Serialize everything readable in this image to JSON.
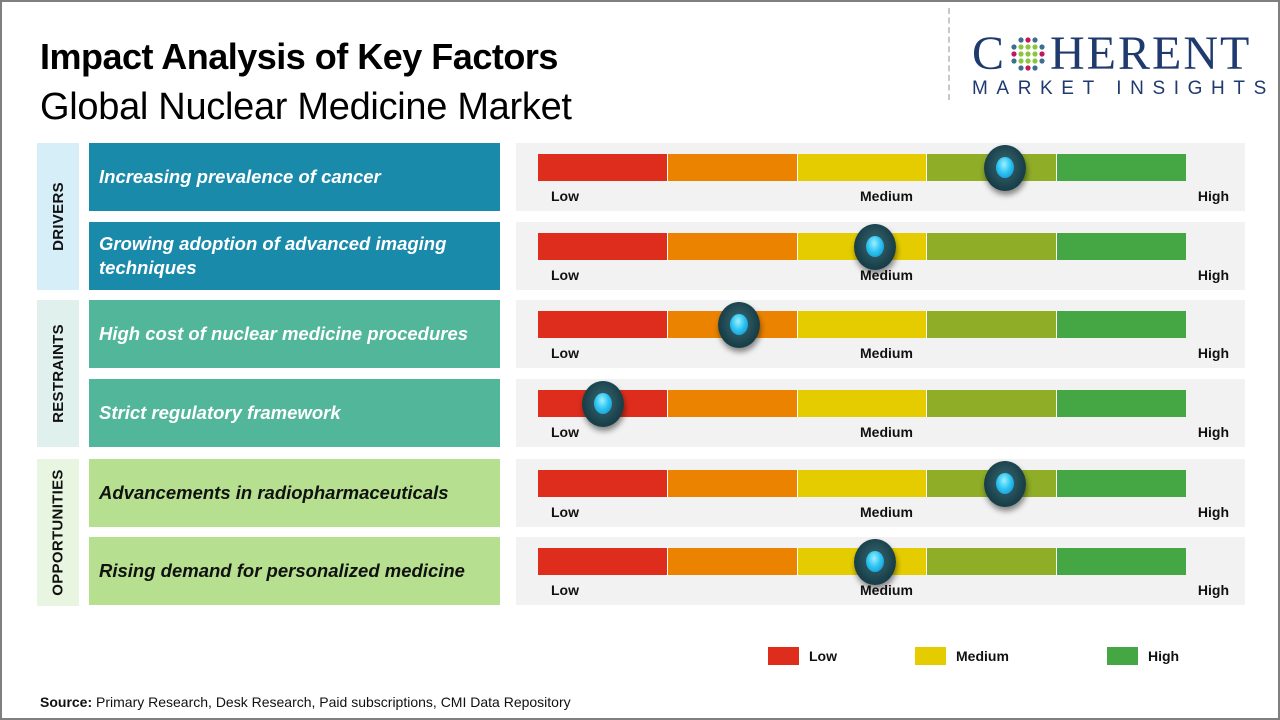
{
  "header": {
    "title": "Impact Analysis of Key Factors",
    "subtitle": "Global Nuclear Medicine Market"
  },
  "logo": {
    "name_part1": "C",
    "name_part2": "HERENT",
    "tagline": "MARKET INSIGHTS",
    "colors": {
      "text": "#1f3a6e",
      "dots_outer": "#3b6e8f",
      "dots_inner": "#8cc63f",
      "dots_accent": "#c2185b"
    }
  },
  "scale": {
    "low_label": "Low",
    "medium_label": "Medium",
    "high_label": "High",
    "segment_colors": [
      "#de2d1c",
      "#ec8300",
      "#e5cc00",
      "#8fad27",
      "#45a744"
    ]
  },
  "categories": [
    {
      "name": "DRIVERS",
      "label_bg": "#d6eef8",
      "factor_bg": "#1a8aab",
      "factor_text_color": "#ffffff"
    },
    {
      "name": "RESTRAINTS",
      "label_bg": "#e0f0ec",
      "factor_bg": "#52b69a",
      "factor_text_color": "#ffffff"
    },
    {
      "name": "OPPORTUNITIES",
      "label_bg": "#e8f5e0",
      "factor_bg": "#b6e090",
      "factor_text_color": "#111111"
    }
  ],
  "chart_data": {
    "type": "gauge-table",
    "title": "Impact Analysis of Key Factors",
    "subtitle": "Global Nuclear Medicine Market",
    "scale": [
      "Low",
      "Medium",
      "High"
    ],
    "value_range": [
      0,
      1
    ],
    "factors": [
      {
        "category": "DRIVERS",
        "label": "Increasing prevalence of cancer",
        "impact": 0.72
      },
      {
        "category": "DRIVERS",
        "label": "Growing adoption of advanced imaging techniques",
        "impact": 0.52
      },
      {
        "category": "RESTRAINTS",
        "label": "High cost of nuclear medicine procedures",
        "impact": 0.31
      },
      {
        "category": "RESTRAINTS",
        "label": "Strict regulatory framework",
        "impact": 0.1
      },
      {
        "category": "OPPORTUNITIES",
        "label": "Advancements in radiopharmaceuticals",
        "impact": 0.72
      },
      {
        "category": "OPPORTUNITIES",
        "label": "Rising demand for personalized medicine",
        "impact": 0.52
      }
    ]
  },
  "legend": [
    {
      "label": "Low",
      "color": "#de2d1c"
    },
    {
      "label": "Medium",
      "color": "#e5cc00"
    },
    {
      "label": "High",
      "color": "#45a744"
    }
  ],
  "footer": {
    "source_label": "Source:",
    "source_text": " Primary Research, Desk Research, Paid subscriptions, CMI Data Repository"
  }
}
